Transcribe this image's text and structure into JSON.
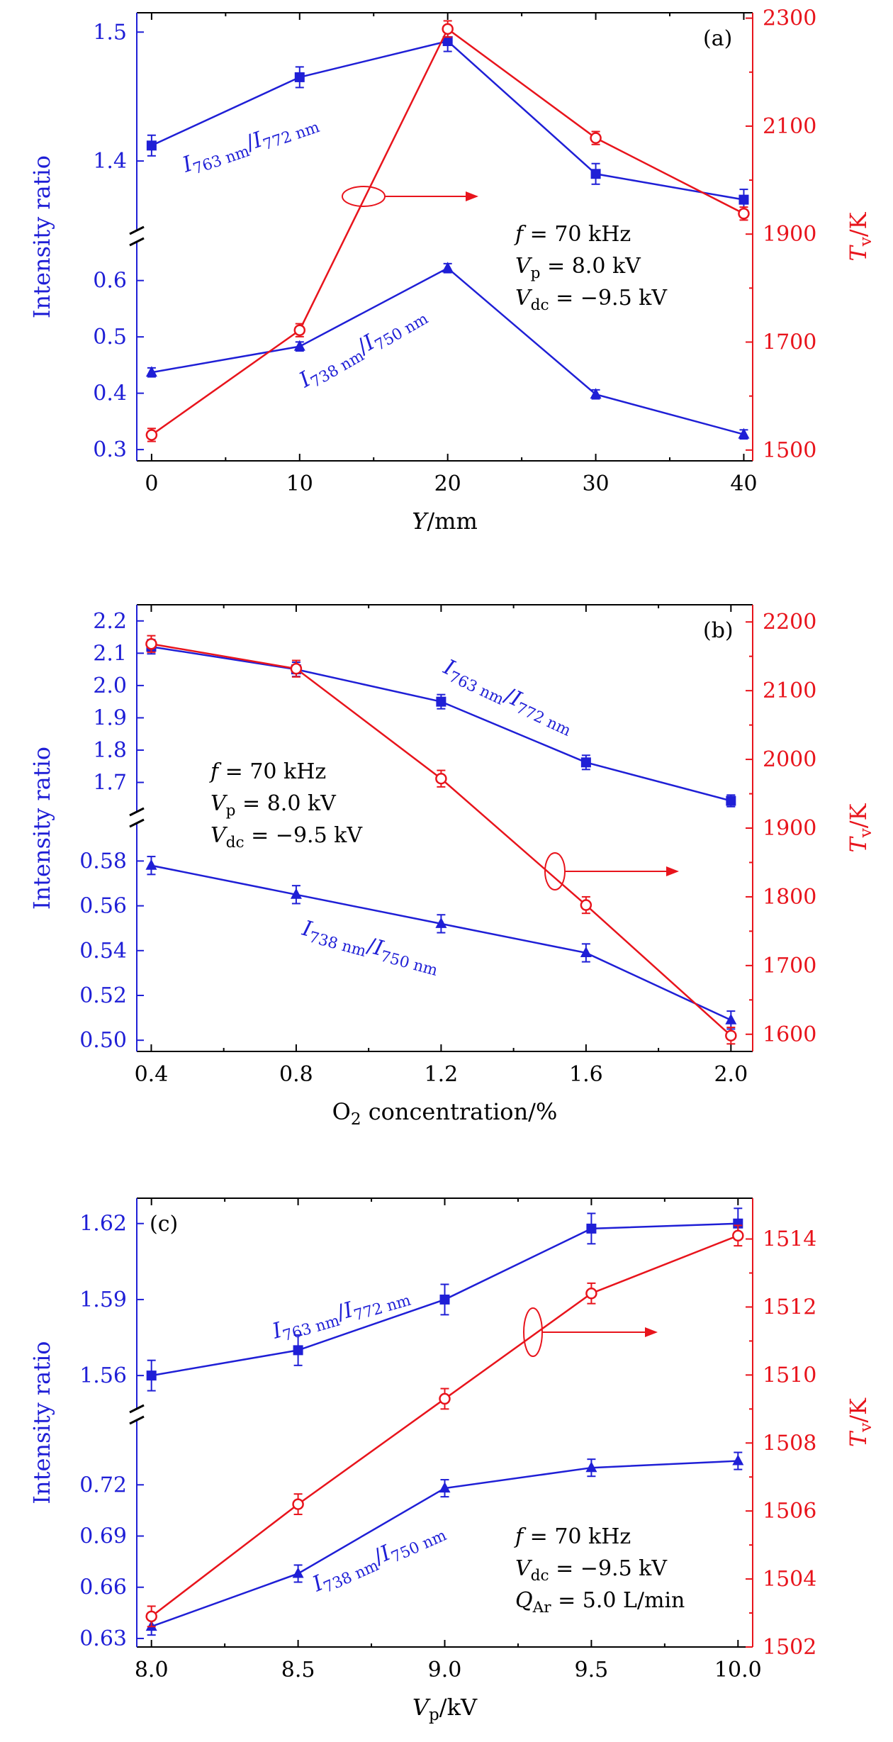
{
  "colors": {
    "left": "#1f1fd6",
    "right": "#e8141c",
    "axis": "#000000"
  },
  "chart_data": [
    {
      "type": "line",
      "panel_label": "(a)",
      "xlabel": {
        "main": "Y",
        "rest": "/mm"
      },
      "x": [
        0,
        10,
        20,
        30,
        40
      ],
      "x_ticks": [
        "0",
        "10",
        "20",
        "30",
        "40"
      ],
      "xlim": [
        -1,
        40.6
      ],
      "ylabel_left": "Intensity ratio",
      "ylabel_right": {
        "main": "T",
        "sub": "v",
        "rest": "/K"
      },
      "left_axis_break": true,
      "upper_range": [
        1.35,
        1.515
      ],
      "upper_ticks": [
        "1.4",
        "1.5"
      ],
      "lower_range": [
        0.28,
        0.66
      ],
      "lower_ticks": [
        "0.3",
        "0.4",
        "0.5",
        "0.6"
      ],
      "right_range": [
        1480,
        2310
      ],
      "right_ticks": [
        "1500",
        "1700",
        "1900",
        "2100",
        "2300"
      ],
      "series": [
        {
          "name": "I763 nm/I772 nm",
          "axis": "left-upper",
          "marker": "square",
          "values": [
            1.412,
            1.465,
            1.493,
            1.39,
            1.37
          ],
          "errors": [
            0.008,
            0.008,
            0.008,
            0.008,
            0.008
          ]
        },
        {
          "name": "I738 nm/I750 nm",
          "axis": "left-lower",
          "marker": "triangle",
          "values": [
            0.437,
            0.483,
            0.622,
            0.398,
            0.327
          ],
          "errors": [
            0.008,
            0.008,
            0.008,
            0.008,
            0.008
          ]
        },
        {
          "name": "Tv",
          "axis": "right",
          "marker": "open-circle",
          "values": [
            1528,
            1722,
            2280,
            2078,
            1938
          ],
          "errors": [
            12,
            12,
            15,
            12,
            12
          ]
        }
      ],
      "annotations": {
        "params": [
          {
            "main": "f",
            "sub": "",
            "rest": " = 70 kHz"
          },
          {
            "main": "V",
            "sub": "p",
            "rest": " = 8.0 kV"
          },
          {
            "main": "V",
            "sub": "dc",
            "rest": " = −9.5 kV"
          }
        ],
        "ratio_upper": {
          "a": "I",
          "a_sub": "763 nm",
          "b": "I",
          "b_sub": "772 nm"
        },
        "ratio_lower": {
          "a": "I",
          "a_sub": "738 nm",
          "b": "I",
          "b_sub": "750 nm"
        }
      }
    },
    {
      "type": "line",
      "panel_label": "(b)",
      "xlabel": {
        "main": "O",
        "sub": "2",
        "rest": " concentration/%"
      },
      "x": [
        0.4,
        0.8,
        1.2,
        1.6,
        2.0
      ],
      "x_ticks": [
        "0.4",
        "0.8",
        "1.2",
        "1.6",
        "2.0"
      ],
      "xlim": [
        0.36,
        2.06
      ],
      "ylabel_left": "Intensity ratio",
      "ylabel_right": {
        "main": "T",
        "sub": "v",
        "rest": "/K"
      },
      "left_axis_break": true,
      "upper_range": [
        1.62,
        2.25
      ],
      "upper_ticks": [
        "1.7",
        "1.8",
        "1.9",
        "2.0",
        "2.1",
        "2.2"
      ],
      "lower_range": [
        0.495,
        0.595
      ],
      "lower_ticks": [
        "0.50",
        "0.52",
        "0.54",
        "0.56",
        "0.58"
      ],
      "right_range": [
        1575,
        2225
      ],
      "right_ticks": [
        "1600",
        "1700",
        "1800",
        "1900",
        "2000",
        "2100",
        "2200"
      ],
      "series": [
        {
          "name": "I763 nm/I772 nm",
          "axis": "left-upper",
          "marker": "square",
          "values": [
            2.12,
            2.05,
            1.95,
            1.762,
            1.643
          ],
          "errors": [
            0.022,
            0.022,
            0.022,
            0.022,
            0.018
          ]
        },
        {
          "name": "I738 nm/I750 nm",
          "axis": "left-lower",
          "marker": "triangle",
          "values": [
            0.578,
            0.565,
            0.552,
            0.539,
            0.509
          ],
          "errors": [
            0.004,
            0.004,
            0.004,
            0.004,
            0.004
          ]
        },
        {
          "name": "Tv",
          "axis": "right",
          "marker": "open-circle",
          "values": [
            2168,
            2132,
            1972,
            1788,
            1598
          ],
          "errors": [
            12,
            12,
            12,
            12,
            12
          ]
        }
      ],
      "annotations": {
        "params": [
          {
            "main": "f",
            "sub": "",
            "rest": " = 70 kHz"
          },
          {
            "main": "V",
            "sub": "p",
            "rest": " = 8.0 kV"
          },
          {
            "main": "V",
            "sub": "dc",
            "rest": " = −9.5 kV"
          }
        ],
        "ratio_upper": {
          "a": "I",
          "a_sub": "763 nm",
          "b": "I",
          "b_sub": "772 nm"
        },
        "ratio_lower": {
          "a": "I",
          "a_sub": "738 nm",
          "b": "I",
          "b_sub": "750 nm"
        }
      }
    },
    {
      "type": "line",
      "panel_label": "(c)",
      "xlabel": {
        "main": "V",
        "sub": "p",
        "rest": "/kV"
      },
      "x": [
        8.0,
        8.5,
        9.0,
        9.5,
        10.0
      ],
      "x_ticks": [
        "8.0",
        "8.5",
        "9.0",
        "9.5",
        "10.0"
      ],
      "xlim": [
        7.95,
        10.05
      ],
      "ylabel_left": "Intensity ratio",
      "ylabel_right": {
        "main": "T",
        "sub": "v",
        "rest": "/K"
      },
      "left_axis_break": true,
      "upper_range": [
        1.548,
        1.63
      ],
      "upper_ticks": [
        "1.56",
        "1.59",
        "1.62"
      ],
      "lower_range": [
        0.625,
        0.755
      ],
      "lower_ticks": [
        "0.63",
        "0.66",
        "0.69",
        "0.72"
      ],
      "right_range": [
        1502,
        1515.2
      ],
      "right_ticks": [
        "1502",
        "1504",
        "1506",
        "1508",
        "1510",
        "1512",
        "1514"
      ],
      "series": [
        {
          "name": "I763 nm/I772 nm",
          "axis": "left-upper",
          "marker": "square",
          "values": [
            1.56,
            1.57,
            1.59,
            1.618,
            1.62
          ],
          "errors": [
            0.006,
            0.006,
            0.006,
            0.006,
            0.006
          ]
        },
        {
          "name": "I738 nm/I750 nm",
          "axis": "left-lower",
          "marker": "triangle",
          "values": [
            0.637,
            0.668,
            0.718,
            0.73,
            0.734
          ],
          "errors": [
            0.005,
            0.005,
            0.005,
            0.005,
            0.005
          ]
        },
        {
          "name": "Tv",
          "axis": "right",
          "marker": "open-circle",
          "values": [
            1502.9,
            1506.2,
            1509.3,
            1512.4,
            1514.1
          ],
          "errors": [
            0.3,
            0.3,
            0.3,
            0.3,
            0.3
          ]
        }
      ],
      "annotations": {
        "params": [
          {
            "main": "f",
            "sub": "",
            "rest": " = 70 kHz"
          },
          {
            "main": "V",
            "sub": "dc",
            "rest": " = −9.5 kV"
          },
          {
            "main": "Q",
            "sub": "Ar",
            "rest": " = 5.0 L/min"
          }
        ],
        "ratio_upper": {
          "a": "I",
          "a_sub": "763 nm",
          "b": "I",
          "b_sub": "772 nm"
        },
        "ratio_lower": {
          "a": "I",
          "a_sub": "738 nm",
          "b": "I",
          "b_sub": "750 nm"
        }
      }
    }
  ]
}
